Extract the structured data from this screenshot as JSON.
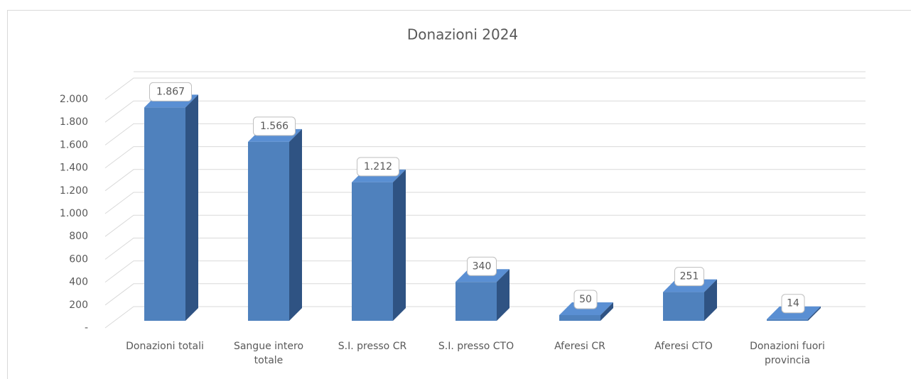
{
  "chart_data": {
    "type": "bar3d",
    "title": "Donazioni 2024",
    "categories": [
      "Donazioni totali",
      "Sangue intero totale",
      "S.I. presso CR",
      "S.I. presso CTO",
      "Aferesi CR",
      "Aferesi CTO",
      "Donazioni fuori provincia"
    ],
    "values": [
      1867,
      1566,
      1212,
      340,
      50,
      251,
      14
    ],
    "value_labels": [
      "1.867",
      "1.566",
      "1.212",
      "340",
      "50",
      "251",
      "14"
    ],
    "color": "#4f81bd",
    "ylim": [
      0,
      2000
    ],
    "yticks": [
      {
        "value": 0,
        "label": "-"
      },
      200,
      400,
      600,
      800,
      {
        "value": 1000,
        "label": "1.000"
      },
      {
        "value": 1200,
        "label": "1.200"
      },
      {
        "value": 1400,
        "label": "1.400"
      },
      {
        "value": 1600,
        "label": "1.600"
      },
      {
        "value": 1800,
        "label": "1.800"
      },
      {
        "value": 2000,
        "label": "2.000"
      }
    ],
    "grid": true
  }
}
